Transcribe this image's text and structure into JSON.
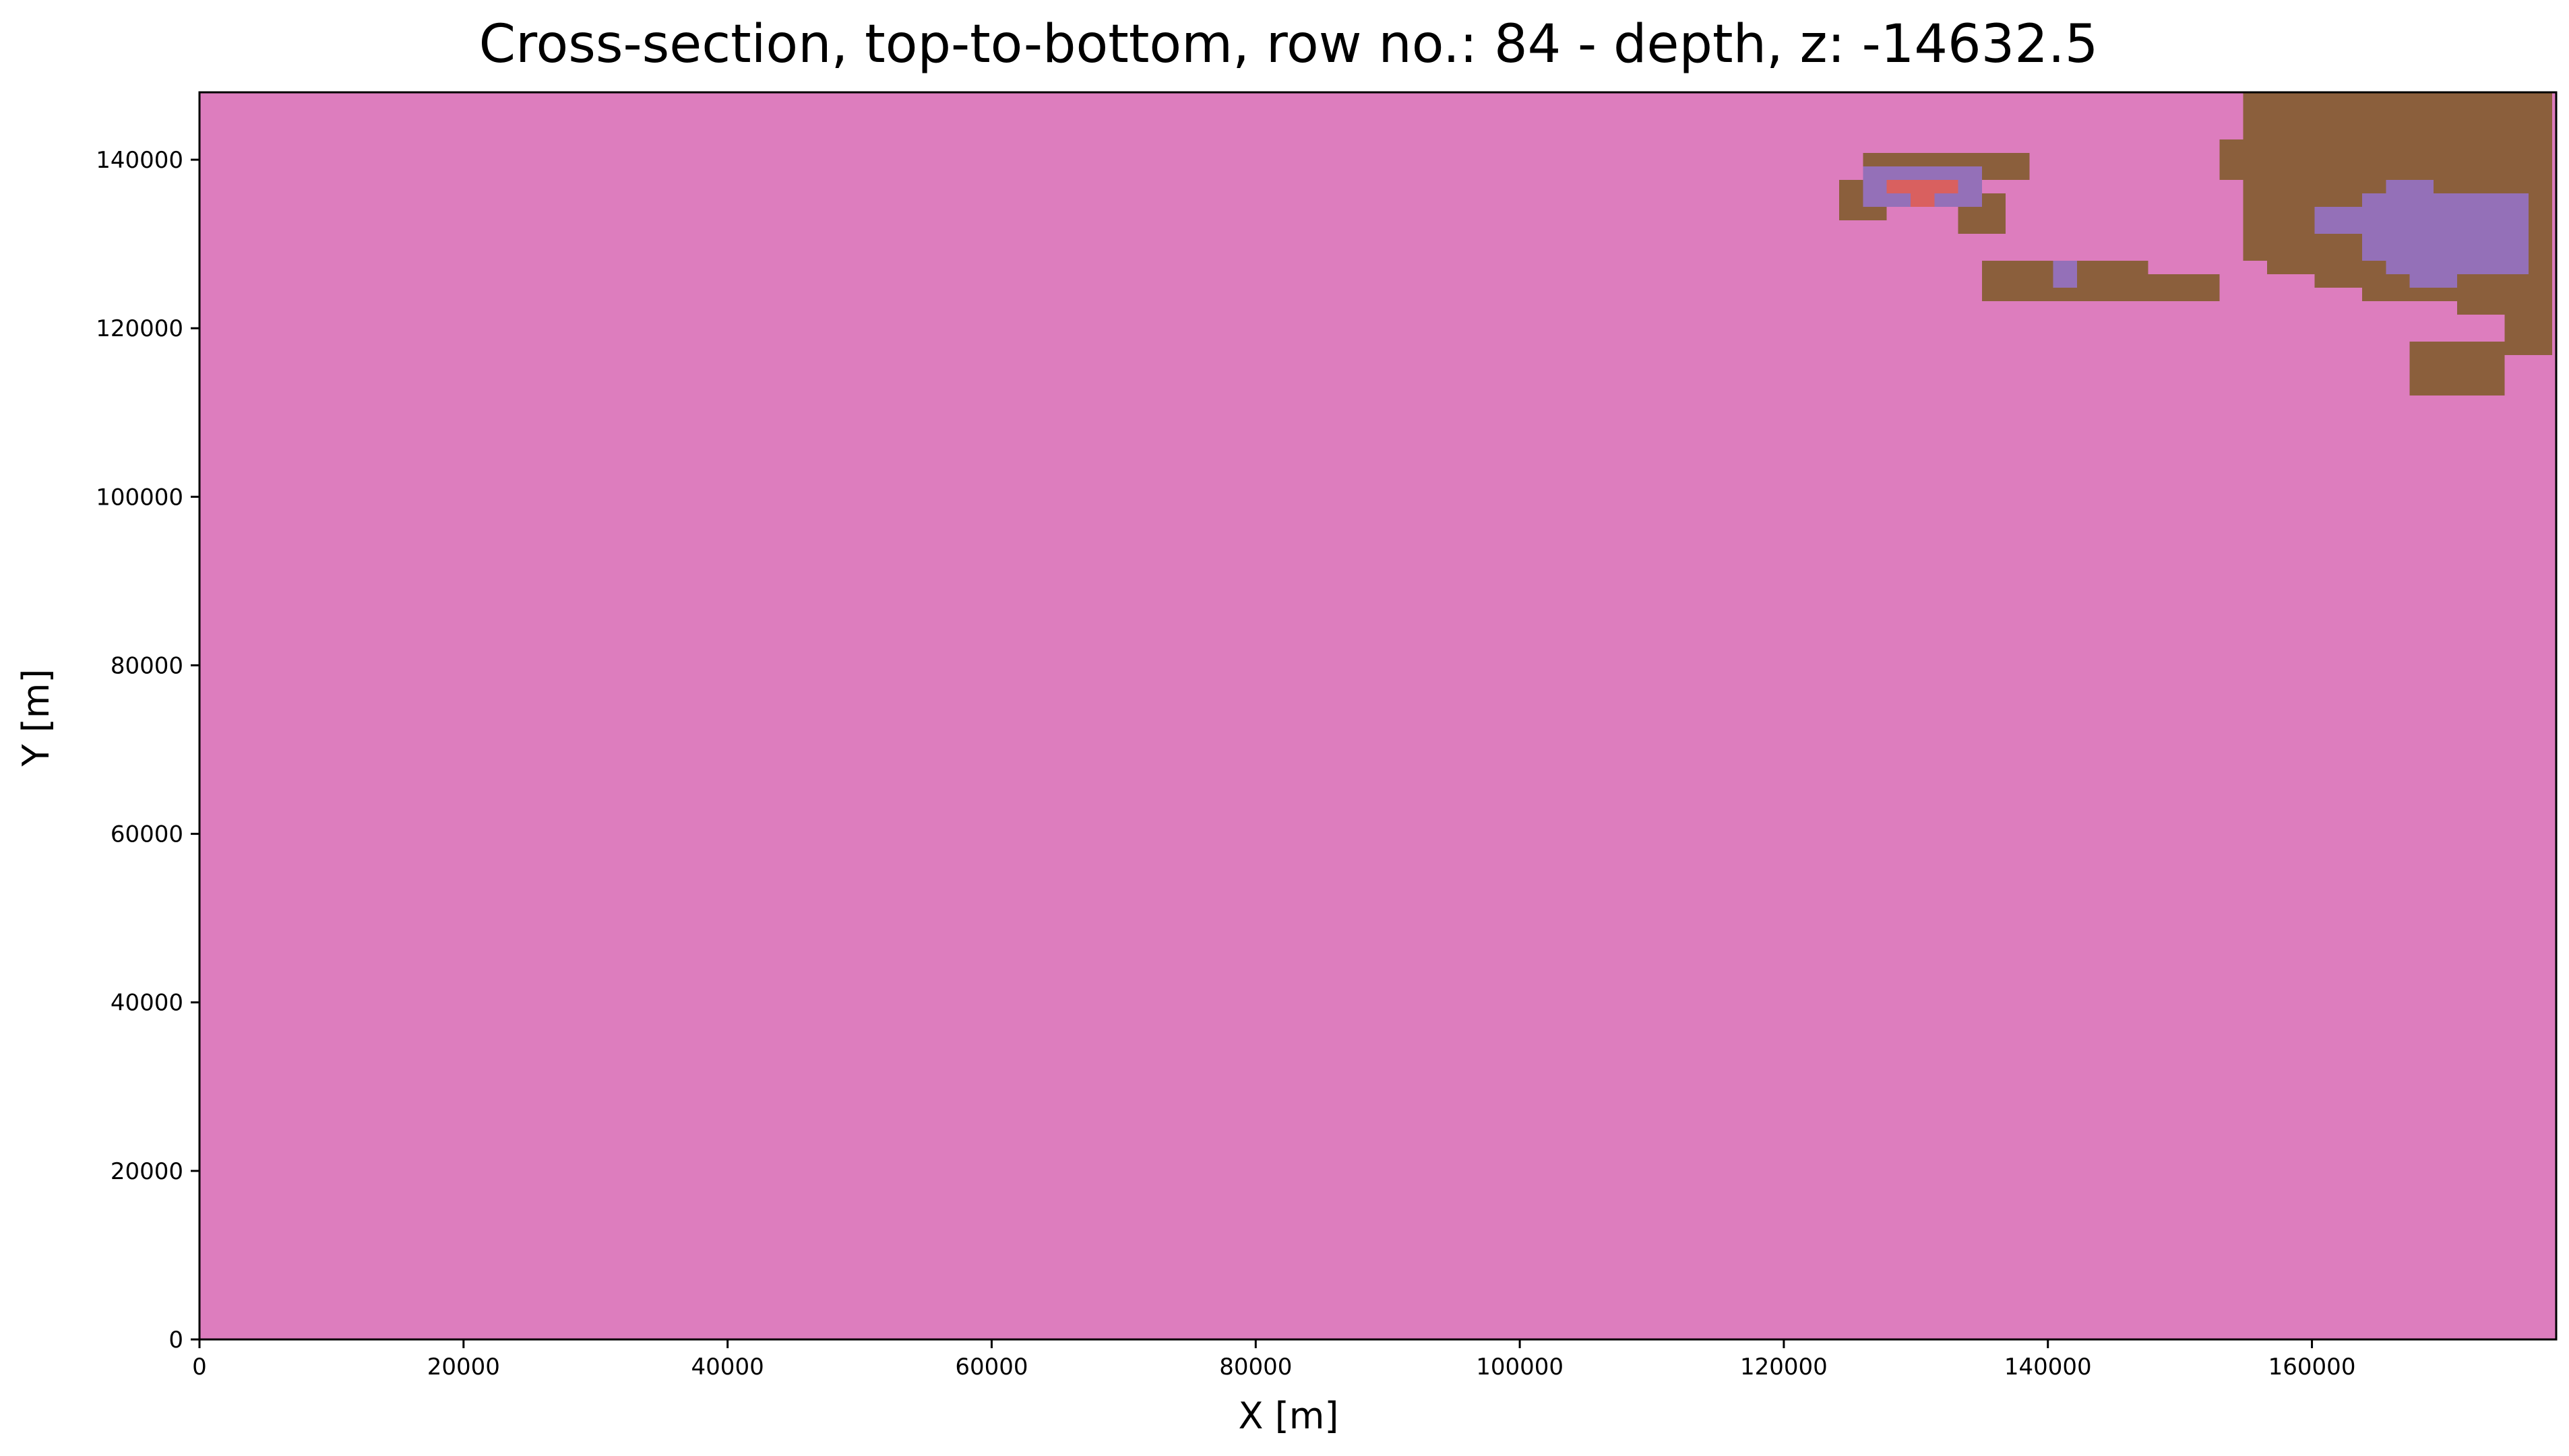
{
  "chart_data": {
    "type": "heatmap",
    "title": "Cross-section, top-to-bottom, row no.: 84 - depth, z: -14632.5",
    "xlabel": "X [m]",
    "ylabel": "Y [m]",
    "xlim": [
      0,
      178500
    ],
    "ylim": [
      0,
      148000
    ],
    "xticks": [
      0,
      20000,
      40000,
      60000,
      80000,
      100000,
      120000,
      140000,
      160000
    ],
    "yticks": [
      0,
      20000,
      40000,
      60000,
      80000,
      100000,
      120000,
      140000
    ],
    "grid": false,
    "legend": "none",
    "cell_size": [
      1800,
      1600
    ],
    "background_class": "pink",
    "colors": {
      "pink": "#dd7dbe",
      "brown": "#8b5f3c",
      "purple": "#9470b8",
      "red": "#d9605f",
      "frame": "#000000"
    },
    "regions": [
      {
        "class": "brown",
        "x": [
          124200,
          127800
        ],
        "y": [
          132400,
          137200
        ]
      },
      {
        "class": "brown",
        "x": [
          125900,
          137700
        ],
        "y": [
          137200,
          140400
        ]
      },
      {
        "class": "brown",
        "x": [
          127700,
          134800
        ],
        "y": [
          134000,
          140400
        ]
      },
      {
        "class": "brown",
        "x": [
          133000,
          136600
        ],
        "y": [
          130800,
          135600
        ]
      },
      {
        "class": "purple",
        "x": [
          125900,
          135000
        ],
        "y": [
          133800,
          138800
        ]
      },
      {
        "class": "red",
        "x": [
          127700,
          133000
        ],
        "y": [
          135400,
          137200
        ]
      },
      {
        "class": "red",
        "x": [
          129500,
          131300
        ],
        "y": [
          133800,
          135400
        ]
      },
      {
        "class": "brown",
        "x": [
          134800,
          147400
        ],
        "y": [
          126000,
          128600
        ]
      },
      {
        "class": "brown",
        "x": [
          134800,
          152500
        ],
        "y": [
          123400,
          127000
        ]
      },
      {
        "class": "purple",
        "x": [
          139600,
          141400
        ],
        "y": [
          124700,
          127400
        ]
      },
      {
        "class": "brown",
        "x": [
          154000,
          178500
        ],
        "y": [
          128200,
          148000
        ]
      },
      {
        "class": "brown",
        "x": [
          152300,
          154000
        ],
        "y": [
          138200,
          143000
        ]
      },
      {
        "class": "brown",
        "x": [
          155800,
          178500
        ],
        "y": [
          126400,
          134000
        ]
      },
      {
        "class": "brown",
        "x": [
          159400,
          178500
        ],
        "y": [
          124800,
          134000
        ]
      },
      {
        "class": "brown",
        "x": [
          163000,
          178500
        ],
        "y": [
          123400,
          134000
        ]
      },
      {
        "class": "brown",
        "x": [
          171800,
          178500
        ],
        "y": [
          121600,
          134000
        ]
      },
      {
        "class": "brown",
        "x": [
          175400,
          178500
        ],
        "y": [
          117200,
          134000
        ]
      },
      {
        "class": "brown",
        "x": [
          170000,
          175400
        ],
        "y": [
          115000,
          119000
        ]
      },
      {
        "class": "brown",
        "x": [
          168000,
          174000
        ],
        "y": [
          112000,
          118400
        ]
      },
      {
        "class": "brown",
        "x": [
          170000,
          175400
        ],
        "y": [
          111200,
          113800
        ]
      },
      {
        "class": "purple",
        "x": [
          159400,
          176000
        ],
        "y": [
          131000,
          134500
        ]
      },
      {
        "class": "purple",
        "x": [
          163000,
          176000
        ],
        "y": [
          127800,
          136000
        ]
      },
      {
        "class": "purple",
        "x": [
          166400,
          176000
        ],
        "y": [
          126000,
          136000
        ]
      },
      {
        "class": "purple",
        "x": [
          168000,
          171800
        ],
        "y": [
          124400,
          126400
        ]
      },
      {
        "class": "purple",
        "x": [
          166400,
          168400
        ],
        "y": [
          135800,
          137400
        ]
      }
    ]
  }
}
